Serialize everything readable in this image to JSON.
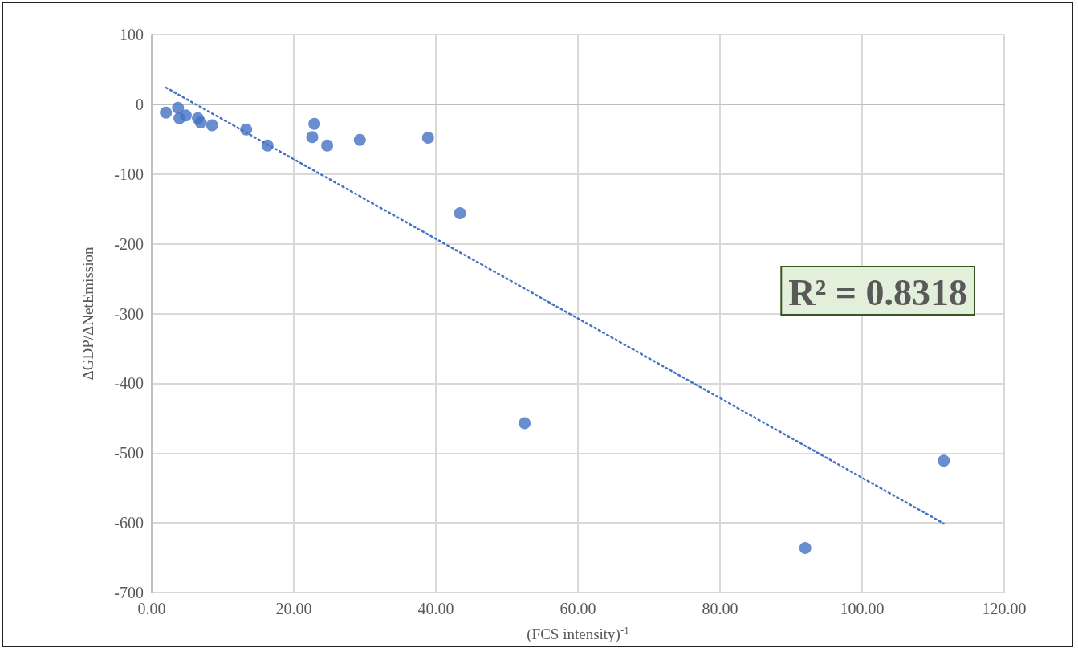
{
  "chart_data": {
    "type": "scatter",
    "xlabel": "(FCS intensity)$^{-1}$",
    "ylabel": "ΔGDP/ΔNetEmission",
    "annotations": [
      "R² = 0.8318"
    ],
    "series": [
      {
        "color": "#4472c4",
        "x": [
          2.0,
          3.3,
          3.7,
          3.9,
          4.8,
          6.5,
          6.9,
          8.5,
          13.3,
          16.3,
          22.9,
          22.6,
          24.7,
          29.3,
          38.9,
          43.4,
          52.5,
          92.0,
          111.5
        ],
        "values": [
          -12,
          null,
          -5,
          -20,
          -16,
          -20,
          -26,
          -30,
          -36,
          -59,
          -28,
          -47,
          -59,
          -51,
          -48,
          -156,
          -457,
          -636,
          -511
        ]
      },
      {
        "type": "line",
        "color": "#4472c4",
        "line_style": "dotted",
        "marker": "none",
        "x": [
          2.0,
          111.5
        ],
        "values": [
          24,
          -601
        ]
      }
    ],
    "marker": "circle",
    "grid": true,
    "xlim": [
      0,
      120
    ],
    "xticks": [
      {
        "value": 0,
        "label": "0.00"
      },
      {
        "value": 20,
        "label": "20.00"
      },
      {
        "value": 40,
        "label": "40.00"
      },
      {
        "value": 60,
        "label": "60.00"
      },
      {
        "value": 80,
        "label": "80.00"
      },
      {
        "value": 100,
        "label": "100.00"
      },
      {
        "value": 120,
        "label": "120.00"
      }
    ],
    "ylim": [
      -700,
      100
    ],
    "yticks": [
      -700,
      -600,
      -500,
      -400,
      -300,
      -200,
      -100,
      0,
      100
    ]
  }
}
